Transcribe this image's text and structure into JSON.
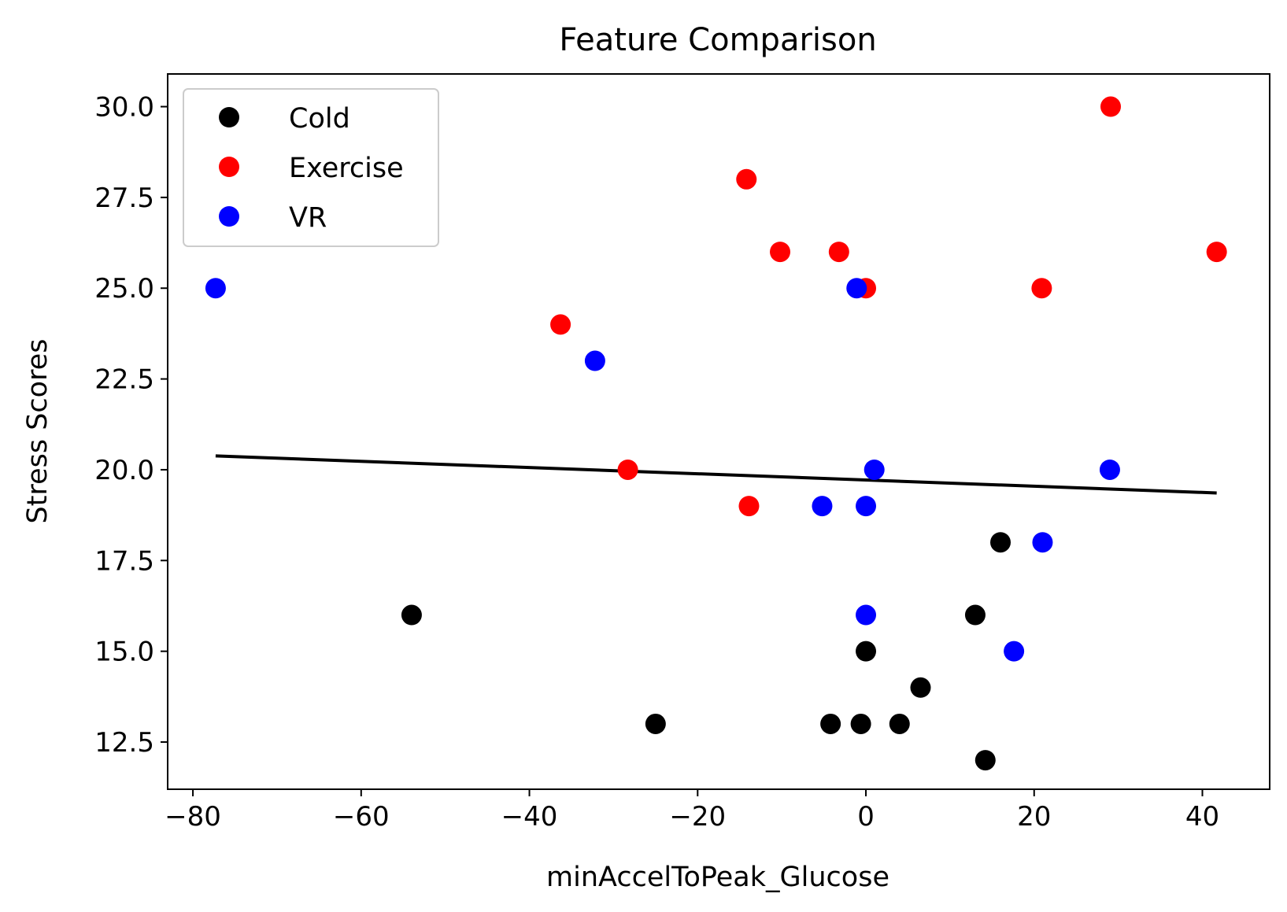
{
  "chart_data": {
    "type": "scatter",
    "title": "Feature Comparison",
    "xlabel": "minAccelToPeak_Glucose",
    "ylabel": "Stress Scores",
    "xlim": [
      -83,
      48
    ],
    "ylim": [
      11.2,
      30.9
    ],
    "xticks": [
      -80,
      -60,
      -40,
      -20,
      0,
      20,
      40
    ],
    "xtick_labels": [
      "−80",
      "−60",
      "−40",
      "−20",
      "0",
      "20",
      "40"
    ],
    "yticks": [
      12.5,
      15.0,
      17.5,
      20.0,
      22.5,
      25.0,
      27.5,
      30.0
    ],
    "ytick_labels": [
      "12.5",
      "15.0",
      "17.5",
      "20.0",
      "22.5",
      "25.0",
      "27.5",
      "30.0"
    ],
    "grid": false,
    "legend_position": "top-left",
    "series": [
      {
        "name": "Cold",
        "color": "#000000",
        "points": [
          {
            "x": -54,
            "y": 16
          },
          {
            "x": -25,
            "y": 13
          },
          {
            "x": -4.2,
            "y": 13
          },
          {
            "x": -0.6,
            "y": 13
          },
          {
            "x": 0,
            "y": 15
          },
          {
            "x": 4,
            "y": 13
          },
          {
            "x": 6.5,
            "y": 14
          },
          {
            "x": 13,
            "y": 16
          },
          {
            "x": 16,
            "y": 18
          },
          {
            "x": 14.2,
            "y": 12
          }
        ]
      },
      {
        "name": "Exercise",
        "color": "#ff0000",
        "points": [
          {
            "x": -36.3,
            "y": 24
          },
          {
            "x": -28.3,
            "y": 20
          },
          {
            "x": -14.2,
            "y": 28
          },
          {
            "x": -13.9,
            "y": 19
          },
          {
            "x": -10.2,
            "y": 26
          },
          {
            "x": -3.2,
            "y": 26
          },
          {
            "x": 0,
            "y": 25
          },
          {
            "x": 20.9,
            "y": 25
          },
          {
            "x": 29.1,
            "y": 30
          },
          {
            "x": 41.7,
            "y": 26
          }
        ]
      },
      {
        "name": "VR",
        "color": "#0000ff",
        "points": [
          {
            "x": -77.3,
            "y": 25
          },
          {
            "x": -32.2,
            "y": 23
          },
          {
            "x": -5.2,
            "y": 19
          },
          {
            "x": -1.1,
            "y": 25
          },
          {
            "x": 0,
            "y": 19
          },
          {
            "x": 0,
            "y": 16
          },
          {
            "x": 1,
            "y": 20
          },
          {
            "x": 17.6,
            "y": 15
          },
          {
            "x": 21,
            "y": 18
          },
          {
            "x": 29,
            "y": 20
          }
        ]
      }
    ],
    "trendline": {
      "color": "#000000",
      "x": [
        -77.3,
        41.7
      ],
      "y": [
        20.38,
        19.36
      ]
    }
  }
}
